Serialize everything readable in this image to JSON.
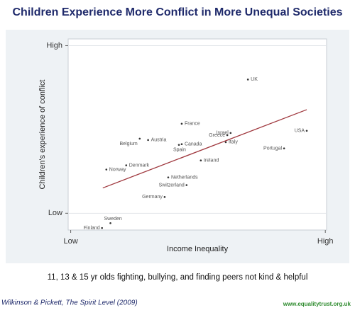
{
  "chart_data": {
    "type": "scatter",
    "title": "Children Experience More Conflict in More Unequal Societies",
    "xlabel": "Income Inequality",
    "ylabel": "Children's experience of conflict",
    "caption": "11, 13 & 15 yr olds fighting, bullying, and finding peers not kind & helpful",
    "source": "Wilkinson & Pickett, The Spirit Level (2009)",
    "url": "www.equalitytrust.org.uk",
    "labels": [
      "UK",
      "France",
      "Israel",
      "USA",
      "Greece",
      "Austria",
      "Belgium",
      "Canada",
      "Spain",
      "Italy",
      "Portugal",
      "Ireland",
      "Denmark",
      "Norway",
      "Netherlands",
      "Switzerland",
      "Germany",
      "Sweden",
      "Finland"
    ],
    "x": [
      6.96,
      4.36,
      6.28,
      9.27,
      6.15,
      3.04,
      2.71,
      4.36,
      4.25,
      6.09,
      8.38,
      5.11,
      2.18,
      1.4,
      3.83,
      4.55,
      3.69,
      1.56,
      1.23
    ],
    "y": [
      7.98,
      5.34,
      4.79,
      4.92,
      4.66,
      4.37,
      4.45,
      4.12,
      4.08,
      4.24,
      3.87,
      3.15,
      2.86,
      2.61,
      2.14,
      1.68,
      0.97,
      -0.59,
      -0.88
    ],
    "color": "#333333",
    "trendline": {
      "x": [
        1.26,
        9.27
      ],
      "y": [
        1.51,
        6.18
      ],
      "color": "#a0393f"
    },
    "xlim": [
      -0.1,
      10.05
    ],
    "ylim": [
      -1,
      10.4
    ],
    "xticks": [
      {
        "value": 0,
        "label": "Low"
      },
      {
        "value": 10,
        "label": "High"
      }
    ],
    "yticks": [
      {
        "value": 0,
        "label": "Low"
      },
      {
        "value": 10,
        "label": "High"
      }
    ],
    "grid": true
  }
}
